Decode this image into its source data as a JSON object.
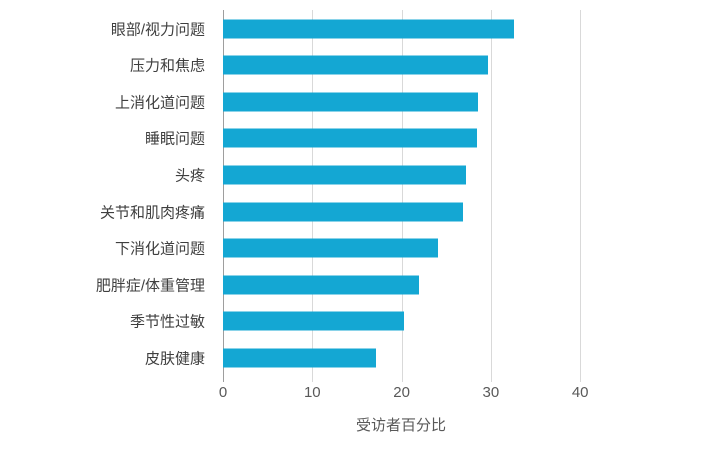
{
  "chart_data": {
    "type": "bar",
    "orientation": "horizontal",
    "title": "",
    "xlabel": "受访者百分比",
    "ylabel": "",
    "categories": [
      "眼部/视力问题",
      "压力和焦虑",
      "上消化道问题",
      "睡眠问题",
      "头疼",
      "关节和肌肉疼痛",
      "下消化道问题",
      "肥胖症/体重管理",
      "季节性过敏",
      "皮肤健康"
    ],
    "values": [
      32.6,
      29.7,
      28.5,
      28.4,
      27.2,
      26.9,
      24.1,
      22.0,
      20.3,
      17.1
    ],
    "xlim": [
      0,
      40
    ],
    "xticks": [
      0,
      10,
      20,
      30,
      40
    ],
    "grid": "vertical-only",
    "legend": "none",
    "colors": {
      "bar": "#14a7d3",
      "gridline": "#d9d9d9",
      "zero_axis": "#9e9e9e",
      "category_label": "#3f3f3f",
      "tick_label": "#595959",
      "axis_title": "#595959"
    }
  }
}
